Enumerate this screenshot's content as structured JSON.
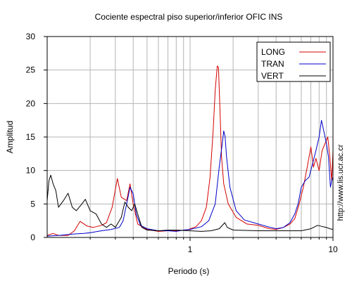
{
  "chart_data": {
    "type": "line",
    "title": "Cociente espectral piso superior/inferior  OFIC INS",
    "xlabel": "Periodo (s)",
    "ylabel": "Amplitud",
    "watermark": "http://www.lis.ucr.ac.cr",
    "x_scale": "log",
    "xlim": [
      0.1,
      10
    ],
    "ylim": [
      0,
      30
    ],
    "x_tick_labels": [
      {
        "v": 1,
        "label": "1"
      },
      {
        "v": 10,
        "label": "10"
      }
    ],
    "y_ticks": [
      0,
      5,
      10,
      15,
      20,
      25,
      30
    ],
    "grid": true,
    "legend_position": "top-right",
    "series": [
      {
        "name": "LONG",
        "color": "#d40000",
        "points": [
          [
            0.1,
            0.3
          ],
          [
            0.11,
            0.6
          ],
          [
            0.12,
            0.3
          ],
          [
            0.14,
            0.3
          ],
          [
            0.155,
            1.0
          ],
          [
            0.17,
            2.4
          ],
          [
            0.19,
            1.7
          ],
          [
            0.21,
            1.5
          ],
          [
            0.24,
            1.8
          ],
          [
            0.26,
            2.2
          ],
          [
            0.285,
            4.5
          ],
          [
            0.31,
            8.8
          ],
          [
            0.33,
            6.0
          ],
          [
            0.36,
            5.5
          ],
          [
            0.38,
            8.0
          ],
          [
            0.4,
            5.0
          ],
          [
            0.43,
            2.0
          ],
          [
            0.5,
            1.2
          ],
          [
            0.6,
            0.9
          ],
          [
            0.7,
            1.0
          ],
          [
            0.8,
            1.0
          ],
          [
            0.95,
            1.1
          ],
          [
            1.1,
            1.6
          ],
          [
            1.2,
            2.5
          ],
          [
            1.3,
            4.5
          ],
          [
            1.38,
            9.0
          ],
          [
            1.45,
            16.0
          ],
          [
            1.5,
            22.0
          ],
          [
            1.55,
            25.6
          ],
          [
            1.58,
            25.4
          ],
          [
            1.62,
            19.0
          ],
          [
            1.66,
            12.0
          ],
          [
            1.72,
            8.0
          ],
          [
            1.85,
            5.0
          ],
          [
            2.1,
            3.0
          ],
          [
            2.5,
            2.0
          ],
          [
            3.0,
            1.8
          ],
          [
            3.6,
            1.3
          ],
          [
            4.0,
            1.2
          ],
          [
            4.5,
            1.5
          ],
          [
            5.0,
            2.0
          ],
          [
            5.4,
            2.8
          ],
          [
            5.8,
            5.0
          ],
          [
            6.2,
            7.5
          ],
          [
            6.6,
            10.5
          ],
          [
            7.0,
            13.5
          ],
          [
            7.3,
            10.5
          ],
          [
            7.6,
            11.8
          ],
          [
            8.0,
            10.0
          ],
          [
            8.4,
            13.0
          ],
          [
            8.8,
            14.0
          ],
          [
            9.2,
            15.0
          ],
          [
            9.5,
            12.0
          ],
          [
            9.8,
            8.5
          ],
          [
            10.0,
            13.0
          ]
        ]
      },
      {
        "name": "TRAN",
        "color": "#0000c8",
        "points": [
          [
            0.1,
            0.2
          ],
          [
            0.12,
            0.3
          ],
          [
            0.15,
            0.5
          ],
          [
            0.18,
            0.6
          ],
          [
            0.2,
            0.7
          ],
          [
            0.24,
            1.0
          ],
          [
            0.28,
            1.2
          ],
          [
            0.32,
            1.5
          ],
          [
            0.34,
            2.5
          ],
          [
            0.36,
            5.0
          ],
          [
            0.38,
            7.5
          ],
          [
            0.4,
            6.5
          ],
          [
            0.42,
            3.5
          ],
          [
            0.45,
            1.8
          ],
          [
            0.5,
            1.3
          ],
          [
            0.6,
            1.0
          ],
          [
            0.7,
            1.0
          ],
          [
            0.8,
            0.9
          ],
          [
            0.9,
            1.1
          ],
          [
            1.0,
            1.2
          ],
          [
            1.2,
            1.6
          ],
          [
            1.35,
            2.5
          ],
          [
            1.5,
            5.0
          ],
          [
            1.6,
            10.5
          ],
          [
            1.68,
            14.0
          ],
          [
            1.72,
            15.9
          ],
          [
            1.76,
            15.0
          ],
          [
            1.8,
            12.0
          ],
          [
            1.9,
            7.5
          ],
          [
            2.1,
            4.0
          ],
          [
            2.4,
            2.6
          ],
          [
            3.0,
            2.0
          ],
          [
            3.5,
            1.6
          ],
          [
            4.0,
            1.3
          ],
          [
            4.5,
            1.5
          ],
          [
            5.0,
            2.2
          ],
          [
            5.4,
            3.5
          ],
          [
            5.7,
            5.0
          ],
          [
            6.0,
            7.5
          ],
          [
            6.4,
            8.5
          ],
          [
            6.8,
            9.0
          ],
          [
            7.2,
            11.0
          ],
          [
            7.6,
            13.0
          ],
          [
            8.0,
            15.0
          ],
          [
            8.3,
            17.5
          ],
          [
            8.6,
            16.0
          ],
          [
            9.0,
            14.0
          ],
          [
            9.3,
            12.0
          ],
          [
            9.6,
            7.5
          ],
          [
            9.8,
            8.5
          ],
          [
            10.0,
            9.0
          ]
        ]
      },
      {
        "name": "VERT",
        "color": "#000000",
        "points": [
          [
            0.1,
            5.5
          ],
          [
            0.103,
            8.5
          ],
          [
            0.106,
            9.3
          ],
          [
            0.11,
            8.0
          ],
          [
            0.115,
            7.0
          ],
          [
            0.12,
            4.5
          ],
          [
            0.13,
            5.5
          ],
          [
            0.14,
            6.6
          ],
          [
            0.15,
            4.5
          ],
          [
            0.16,
            4.0
          ],
          [
            0.175,
            5.0
          ],
          [
            0.185,
            5.7
          ],
          [
            0.2,
            4.0
          ],
          [
            0.22,
            3.5
          ],
          [
            0.24,
            2.0
          ],
          [
            0.26,
            1.5
          ],
          [
            0.28,
            2.0
          ],
          [
            0.3,
            1.5
          ],
          [
            0.33,
            3.0
          ],
          [
            0.35,
            5.3
          ],
          [
            0.37,
            4.5
          ],
          [
            0.39,
            4.0
          ],
          [
            0.41,
            5.0
          ],
          [
            0.43,
            3.5
          ],
          [
            0.46,
            1.5
          ],
          [
            0.5,
            1.1
          ],
          [
            0.6,
            1.0
          ],
          [
            0.7,
            1.1
          ],
          [
            0.8,
            1.1
          ],
          [
            1.0,
            1.0
          ],
          [
            1.2,
            0.9
          ],
          [
            1.4,
            1.0
          ],
          [
            1.6,
            1.3
          ],
          [
            1.75,
            2.2
          ],
          [
            1.82,
            1.5
          ],
          [
            2.0,
            1.1
          ],
          [
            3.0,
            1.0
          ],
          [
            4.0,
            1.0
          ],
          [
            5.0,
            1.0
          ],
          [
            6.0,
            1.0
          ],
          [
            7.0,
            1.3
          ],
          [
            7.8,
            1.8
          ],
          [
            8.5,
            1.6
          ],
          [
            9.0,
            1.5
          ],
          [
            9.5,
            1.3
          ],
          [
            10.0,
            1.2
          ]
        ]
      }
    ]
  }
}
